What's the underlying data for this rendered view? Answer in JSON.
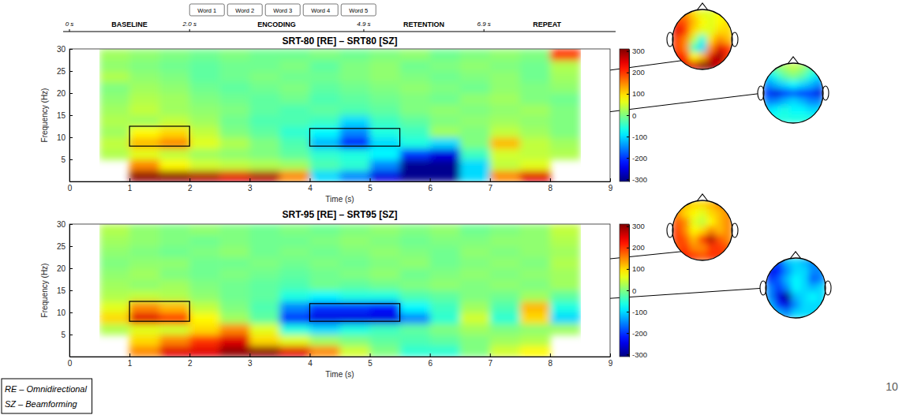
{
  "timeline": {
    "markers": [
      {
        "value": 0,
        "label": "0 s"
      },
      {
        "value": 2.0,
        "label": "2.0 s"
      },
      {
        "value": 4.9,
        "label": "4.9 s"
      },
      {
        "value": 6.9,
        "label": "6.9 s"
      }
    ],
    "phases": [
      "BASELINE",
      "ENCODING",
      "RETENTION",
      "REPEAT"
    ],
    "words": [
      "Word 1",
      "Word 2",
      "Word 3",
      "Word 4",
      "Word 5"
    ]
  },
  "chart_data": [
    {
      "type": "heatmap",
      "title": "SRT-80 [RE] – SRT80 [SZ]",
      "x_label": "Time (s)",
      "y_label": "Frequency (Hz)",
      "xlim": [
        0,
        9
      ],
      "xticks": [
        0,
        1,
        2,
        3,
        4,
        5,
        6,
        7,
        8,
        9
      ],
      "ylim": [
        0,
        30
      ],
      "yticks": [
        5,
        10,
        15,
        20,
        25,
        30
      ],
      "x_bins": [
        0,
        0.5,
        1,
        1.5,
        2,
        2.5,
        3,
        3.5,
        4,
        4.5,
        5,
        5.5,
        6,
        6.5,
        7,
        7.5,
        8,
        8.5,
        9
      ],
      "y_bins": [
        0,
        2.5,
        5,
        7.5,
        10,
        12.5,
        15,
        17.5,
        20,
        22.5,
        25,
        27.5,
        30
      ],
      "cells": [
        [
          null,
          null,
          300,
          300,
          280,
          250,
          280,
          150,
          -100,
          -150,
          -250,
          -300,
          -300,
          -100,
          150,
          250,
          null,
          null
        ],
        [
          null,
          null,
          150,
          80,
          50,
          40,
          30,
          20,
          -30,
          -50,
          -150,
          -300,
          -300,
          -100,
          40,
          60,
          null,
          null
        ],
        [
          null,
          30,
          60,
          40,
          20,
          10,
          0,
          -20,
          -50,
          -60,
          -80,
          -200,
          -250,
          -40,
          50,
          40,
          30,
          null
        ],
        [
          null,
          40,
          120,
          150,
          60,
          30,
          0,
          -30,
          -120,
          -220,
          -100,
          -60,
          -100,
          0,
          120,
          40,
          20,
          null
        ],
        [
          null,
          20,
          80,
          100,
          40,
          0,
          -20,
          -50,
          -80,
          -150,
          -60,
          -40,
          20,
          0,
          40,
          20,
          0,
          null
        ],
        [
          null,
          30,
          20,
          40,
          20,
          -10,
          -30,
          -30,
          -40,
          -100,
          -40,
          -20,
          0,
          10,
          20,
          10,
          0,
          null
        ],
        [
          null,
          20,
          40,
          20,
          10,
          0,
          -20,
          -30,
          -20,
          -30,
          -20,
          0,
          10,
          0,
          10,
          20,
          0,
          null
        ],
        [
          null,
          10,
          30,
          20,
          0,
          -10,
          -20,
          -10,
          -30,
          -20,
          -10,
          0,
          -10,
          10,
          20,
          0,
          -10,
          null
        ],
        [
          null,
          0,
          20,
          10,
          -10,
          -20,
          -10,
          0,
          -20,
          -10,
          0,
          10,
          0,
          -10,
          10,
          0,
          10,
          null
        ],
        [
          null,
          30,
          10,
          0,
          -20,
          -10,
          0,
          -10,
          -10,
          0,
          10,
          0,
          -10,
          0,
          10,
          -10,
          20,
          null
        ],
        [
          null,
          10,
          0,
          -10,
          -20,
          -10,
          -10,
          0,
          -20,
          0,
          10,
          -10,
          0,
          10,
          0,
          -10,
          30,
          null
        ],
        [
          null,
          20,
          10,
          0,
          -10,
          0,
          -10,
          -10,
          0,
          -10,
          0,
          10,
          -10,
          0,
          10,
          0,
          200,
          null
        ]
      ],
      "colorbar": {
        "range": [
          -310,
          310
        ],
        "ticks": [
          -300,
          -200,
          -100,
          0,
          100,
          200,
          300
        ]
      },
      "regions": [
        {
          "x": [
            1,
            2
          ],
          "y": [
            8,
            12.5
          ],
          "topomap": [
            [
              150,
              150,
              100,
              60,
              60,
              80,
              80
            ],
            [
              200,
              180,
              120,
              80,
              60,
              80,
              100
            ],
            [
              250,
              200,
              100,
              60,
              60,
              100,
              100
            ],
            [
              200,
              150,
              40,
              -60,
              100,
              150,
              120
            ],
            [
              200,
              150,
              -40,
              -100,
              150,
              250,
              200
            ],
            [
              220,
              200,
              80,
              120,
              250,
              300,
              200
            ],
            [
              200,
              250,
              250,
              300,
              300,
              250,
              180
            ]
          ]
        },
        {
          "x": [
            4,
            5.5
          ],
          "y": [
            8,
            12
          ],
          "topomap": [
            [
              -50,
              0,
              20,
              40,
              20,
              -20,
              -40
            ],
            [
              -100,
              -60,
              -20,
              0,
              -20,
              -60,
              -100
            ],
            [
              -150,
              -120,
              -100,
              -80,
              -100,
              -120,
              -150
            ],
            [
              -200,
              -250,
              -200,
              -180,
              -200,
              -200,
              -250
            ],
            [
              -150,
              -150,
              -120,
              -100,
              -120,
              -150,
              -150
            ],
            [
              -100,
              -80,
              -60,
              -80,
              -80,
              -100,
              -100
            ],
            [
              -80,
              -60,
              -60,
              -60,
              -60,
              -60,
              -80
            ]
          ]
        }
      ]
    },
    {
      "type": "heatmap",
      "title": "SRT-95 [RE] – SRT95 [SZ]",
      "x_label": "Time (s)",
      "y_label": "Frequency (Hz)",
      "xlim": [
        0,
        9
      ],
      "xticks": [
        0,
        1,
        2,
        3,
        4,
        5,
        6,
        7,
        8,
        9
      ],
      "ylim": [
        0,
        30
      ],
      "yticks": [
        5,
        10,
        15,
        20,
        25,
        30
      ],
      "x_bins": [
        0,
        0.5,
        1,
        1.5,
        2,
        2.5,
        3,
        3.5,
        4,
        4.5,
        5,
        5.5,
        6,
        6.5,
        7,
        7.5,
        8,
        8.5,
        9
      ],
      "y_bins": [
        0,
        2.5,
        5,
        7.5,
        10,
        12.5,
        15,
        17.5,
        20,
        22.5,
        25,
        27.5,
        30
      ],
      "cells": [
        [
          null,
          null,
          150,
          250,
          250,
          300,
          300,
          250,
          150,
          50,
          0,
          -50,
          -50,
          0,
          50,
          80,
          null,
          null
        ],
        [
          null,
          null,
          100,
          150,
          200,
          250,
          100,
          60,
          20,
          0,
          -20,
          -30,
          -20,
          0,
          20,
          30,
          null,
          null
        ],
        [
          null,
          30,
          60,
          50,
          100,
          150,
          60,
          -60,
          -100,
          -60,
          -40,
          -20,
          0,
          20,
          0,
          10,
          20,
          null
        ],
        [
          null,
          100,
          250,
          200,
          80,
          20,
          -20,
          -200,
          -250,
          -250,
          -250,
          -150,
          -50,
          50,
          -50,
          100,
          -100,
          null
        ],
        [
          null,
          60,
          150,
          120,
          40,
          0,
          -30,
          -150,
          -200,
          -200,
          -220,
          -80,
          -40,
          20,
          -30,
          120,
          -60,
          null
        ],
        [
          null,
          30,
          40,
          30,
          10,
          -10,
          -20,
          -60,
          -80,
          -60,
          -60,
          -30,
          -20,
          0,
          -10,
          20,
          -20,
          null
        ],
        [
          null,
          20,
          10,
          20,
          0,
          -10,
          -20,
          -30,
          -10,
          -20,
          -10,
          0,
          10,
          0,
          10,
          0,
          20,
          null
        ],
        [
          null,
          10,
          20,
          0,
          -10,
          0,
          -10,
          -20,
          -10,
          0,
          10,
          -10,
          0,
          10,
          0,
          10,
          20,
          null
        ],
        [
          null,
          0,
          10,
          10,
          -10,
          -10,
          0,
          -10,
          0,
          -10,
          0,
          10,
          -10,
          0,
          10,
          0,
          30,
          null
        ],
        [
          null,
          10,
          0,
          -10,
          0,
          10,
          -10,
          0,
          -10,
          0,
          10,
          0,
          -10,
          10,
          0,
          10,
          20,
          null
        ],
        [
          null,
          20,
          10,
          0,
          -10,
          0,
          -10,
          -10,
          0,
          10,
          0,
          -10,
          0,
          0,
          10,
          10,
          30,
          null
        ],
        [
          null,
          30,
          10,
          0,
          10,
          0,
          -10,
          0,
          -10,
          0,
          10,
          0,
          10,
          -10,
          0,
          10,
          40,
          null
        ]
      ],
      "colorbar": {
        "range": [
          -310,
          310
        ],
        "ticks": [
          -300,
          -200,
          -100,
          0,
          100,
          200,
          300
        ]
      },
      "regions": [
        {
          "x": [
            1,
            2
          ],
          "y": [
            8,
            12.5
          ],
          "topomap": [
            [
              150,
              120,
              100,
              100,
              120,
              150,
              150
            ],
            [
              150,
              100,
              80,
              60,
              100,
              120,
              150
            ],
            [
              180,
              150,
              60,
              40,
              80,
              120,
              150
            ],
            [
              200,
              150,
              80,
              100,
              150,
              120,
              150
            ],
            [
              200,
              180,
              120,
              200,
              280,
              180,
              150
            ],
            [
              180,
              200,
              150,
              150,
              200,
              200,
              180
            ],
            [
              200,
              220,
              200,
              180,
              200,
              200,
              180
            ]
          ]
        },
        {
          "x": [
            4,
            5.5
          ],
          "y": [
            8,
            12
          ],
          "topomap": [
            [
              -150,
              -200,
              -120,
              -100,
              -120,
              -150,
              -150
            ],
            [
              -250,
              -220,
              -150,
              -100,
              -100,
              -150,
              -150
            ],
            [
              -200,
              -180,
              -120,
              -80,
              -100,
              -180,
              -150
            ],
            [
              -150,
              -200,
              -150,
              -80,
              -100,
              -120,
              -100
            ],
            [
              -150,
              -250,
              -300,
              -120,
              -100,
              -80,
              -100
            ],
            [
              -120,
              -200,
              -250,
              -150,
              -100,
              -100,
              -100
            ],
            [
              -100,
              -120,
              -150,
              -100,
              -100,
              -100,
              -100
            ]
          ]
        }
      ]
    }
  ],
  "notes": [
    "RE – Omnidirectional",
    "SZ – Beamforming"
  ],
  "page_number": "10"
}
